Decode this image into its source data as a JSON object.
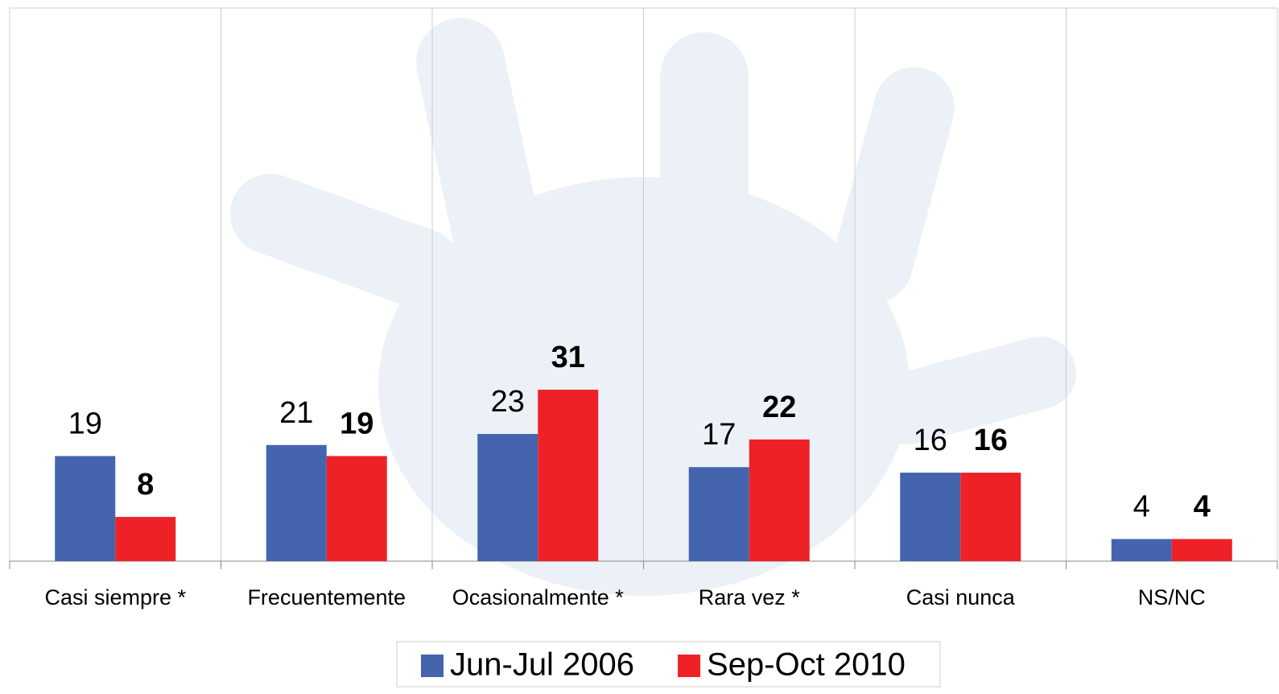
{
  "chart_data": {
    "type": "bar",
    "categories": [
      "Casi siempre *",
      "Frecuentemente",
      "Ocasionalmente *",
      "Rara vez *",
      "Casi nunca",
      "NS/NC"
    ],
    "series": [
      {
        "name": "Jun-Jul 2006",
        "color": "#4464ad",
        "values": [
          19,
          21,
          23,
          17,
          16,
          4
        ]
      },
      {
        "name": "Sep-Oct 2010",
        "color": "#ee2127",
        "values": [
          8,
          19,
          31,
          22,
          16,
          4
        ]
      }
    ],
    "ylim": [
      0,
      100
    ],
    "grid": true
  }
}
